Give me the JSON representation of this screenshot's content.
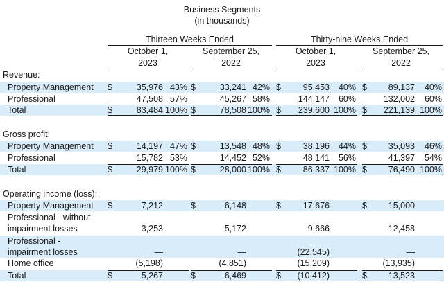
{
  "title": "Business Segments",
  "subtitle": "(in thousands)",
  "period_headers": [
    "Thirteen Weeks Ended",
    "Thirty-nine Weeks Ended"
  ],
  "column_headers": [
    {
      "line1": "October 1,",
      "line2": "2023"
    },
    {
      "line1": "September 25,",
      "line2": "2022"
    },
    {
      "line1": "October 1,",
      "line2": "2023"
    },
    {
      "line1": "September 25,",
      "line2": "2022"
    }
  ],
  "sections": [
    {
      "heading": "Revenue:",
      "rows": [
        {
          "label": "Property Management",
          "cells": [
            {
              "cur": "$",
              "amt": "35,976",
              "pct": "43%"
            },
            {
              "cur": "$",
              "amt": "33,241",
              "pct": "42%"
            },
            {
              "cur": "$",
              "amt": "95,453",
              "pct": "40%"
            },
            {
              "cur": "$",
              "amt": "89,137",
              "pct": "40%"
            }
          ]
        },
        {
          "label": "Professional",
          "cells": [
            {
              "cur": "",
              "amt": "47,508",
              "pct": "57%"
            },
            {
              "cur": "",
              "amt": "45,267",
              "pct": "58%"
            },
            {
              "cur": "",
              "amt": "144,147",
              "pct": "60%"
            },
            {
              "cur": "",
              "amt": "132,002",
              "pct": "60%"
            }
          ]
        },
        {
          "label": "Total",
          "cells": [
            {
              "cur": "$",
              "amt": "83,484",
              "pct": "100%"
            },
            {
              "cur": "$",
              "amt": "78,508",
              "pct": "100%"
            },
            {
              "cur": "$",
              "amt": "239,600",
              "pct": "100%"
            },
            {
              "cur": "$",
              "amt": "221,139",
              "pct": "100%"
            }
          ]
        }
      ]
    },
    {
      "heading": "Gross profit:",
      "rows": [
        {
          "label": "Property Management",
          "cells": [
            {
              "cur": "$",
              "amt": "14,197",
              "pct": "47%"
            },
            {
              "cur": "$",
              "amt": "13,548",
              "pct": "48%"
            },
            {
              "cur": "$",
              "amt": "38,196",
              "pct": "44%"
            },
            {
              "cur": "$",
              "amt": "35,093",
              "pct": "46%"
            }
          ]
        },
        {
          "label": "Professional",
          "cells": [
            {
              "cur": "",
              "amt": "15,782",
              "pct": "53%"
            },
            {
              "cur": "",
              "amt": "14,452",
              "pct": "52%"
            },
            {
              "cur": "",
              "amt": "48,141",
              "pct": "56%"
            },
            {
              "cur": "",
              "amt": "41,397",
              "pct": "54%"
            }
          ]
        },
        {
          "label": "Total",
          "cells": [
            {
              "cur": "$",
              "amt": "29,979",
              "pct": "100%"
            },
            {
              "cur": "$",
              "amt": "28,000",
              "pct": "100%"
            },
            {
              "cur": "$",
              "amt": "86,337",
              "pct": "100%"
            },
            {
              "cur": "$",
              "amt": "76,490",
              "pct": "100%"
            }
          ]
        }
      ]
    },
    {
      "heading": "Operating income (loss):",
      "rows": [
        {
          "label": "Property Management",
          "cells": [
            {
              "cur": "$",
              "amt": "7,212",
              "pct": ""
            },
            {
              "cur": "$",
              "amt": "6,148",
              "pct": ""
            },
            {
              "cur": "$",
              "amt": "17,676",
              "pct": ""
            },
            {
              "cur": "$",
              "amt": "15,000",
              "pct": ""
            }
          ]
        },
        {
          "label": "Professional - without",
          "label2": "impairment losses",
          "cells": [
            {
              "cur": "",
              "amt": "3,253",
              "pct": ""
            },
            {
              "cur": "",
              "amt": "5,172",
              "pct": ""
            },
            {
              "cur": "",
              "amt": "9,666",
              "pct": ""
            },
            {
              "cur": "",
              "amt": "12,458",
              "pct": ""
            }
          ]
        },
        {
          "label": "Professional -",
          "label2": "impairment losses",
          "cells": [
            {
              "cur": "",
              "amt": "—",
              "pct": ""
            },
            {
              "cur": "",
              "amt": "—",
              "pct": ""
            },
            {
              "cur": "",
              "amt": "(22,545)",
              "pct": ""
            },
            {
              "cur": "",
              "amt": "—",
              "pct": ""
            }
          ]
        },
        {
          "label": "Home office",
          "cells": [
            {
              "cur": "",
              "amt": "(5,198)",
              "pct": ""
            },
            {
              "cur": "",
              "amt": "(4,851)",
              "pct": ""
            },
            {
              "cur": "",
              "amt": "(15,209)",
              "pct": ""
            },
            {
              "cur": "",
              "amt": "(13,935)",
              "pct": ""
            }
          ]
        },
        {
          "label": "Total",
          "cells": [
            {
              "cur": "$",
              "amt": "5,267",
              "pct": ""
            },
            {
              "cur": "$",
              "amt": "6,469",
              "pct": ""
            },
            {
              "cur": "$",
              "amt": "(10,412)",
              "pct": ""
            },
            {
              "cur": "$",
              "amt": "13,523",
              "pct": ""
            }
          ]
        }
      ]
    }
  ],
  "colors": {
    "band": "#d9ecfa",
    "text": "#1a1a1a",
    "rule": "#1a1a1a"
  }
}
